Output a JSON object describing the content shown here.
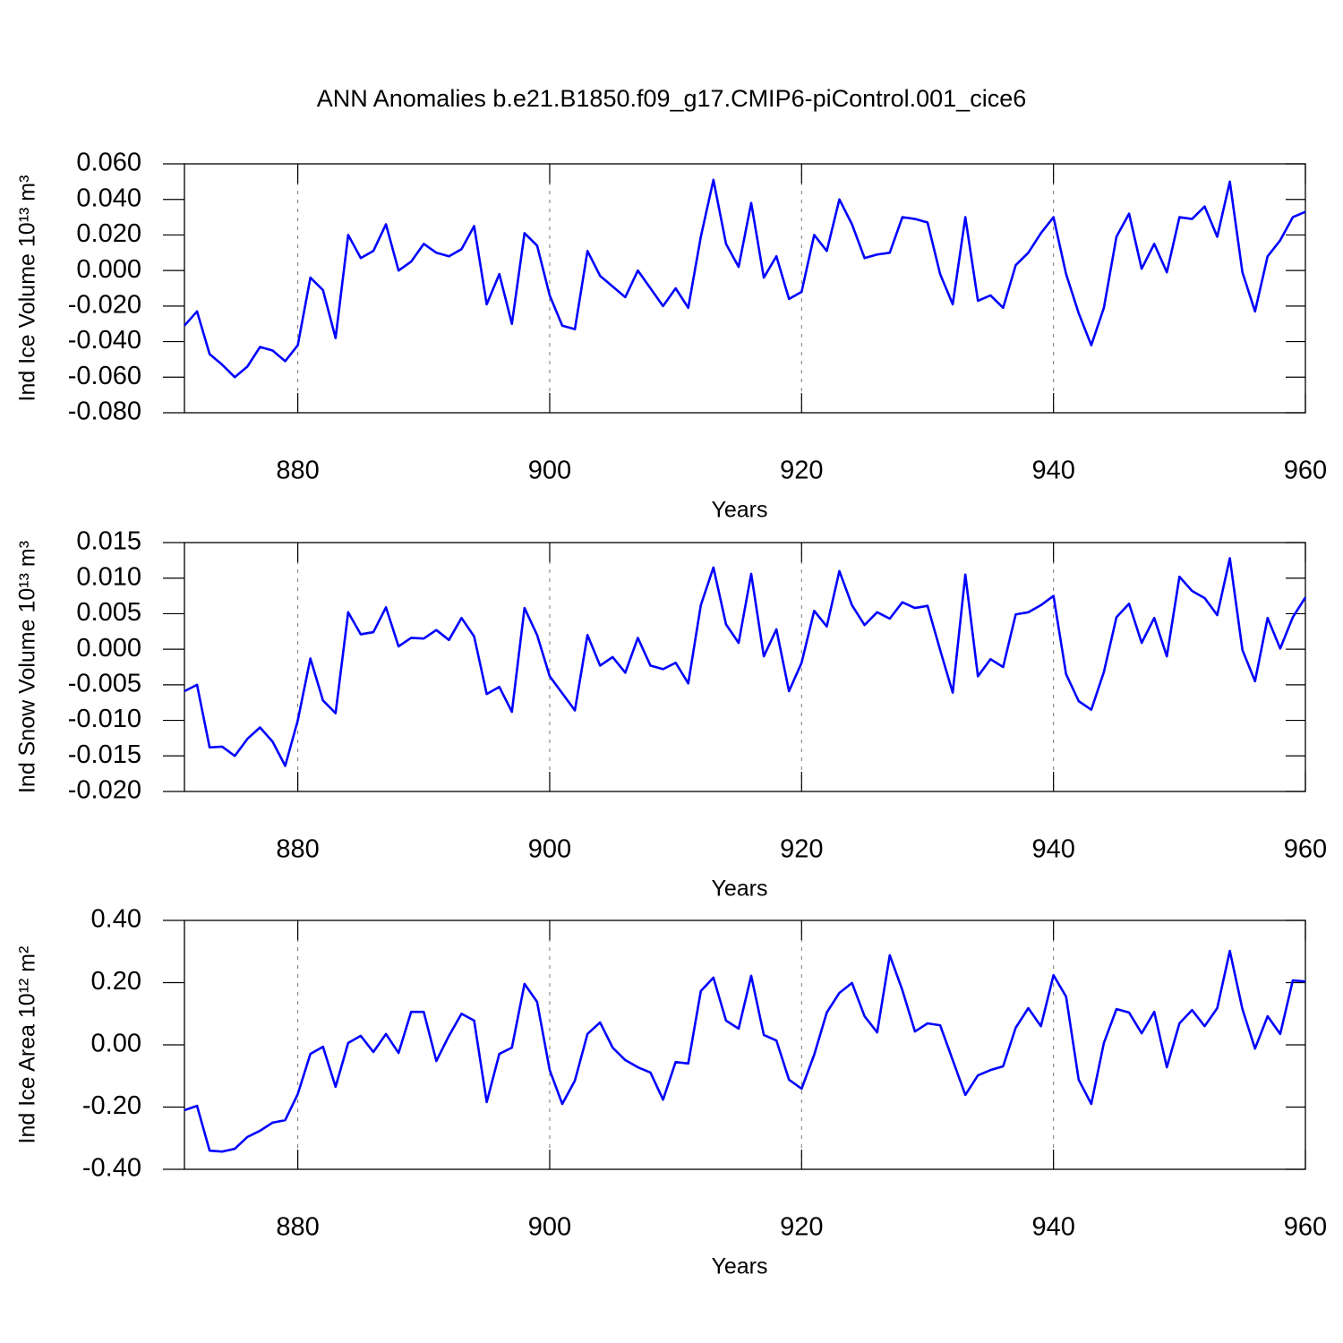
{
  "title": "ANN Anomalies b.e21.B1850.f09_g17.CMIP6-piControl.001_cice6",
  "chart_data": [
    {
      "type": "line",
      "ylabel": "Ind Ice Volume 10¹³ m³",
      "xlabel": "Years",
      "color": "#0000ff",
      "xgrid": true,
      "xlim": [
        871,
        960
      ],
      "xticks": [
        880,
        900,
        920,
        940,
        960
      ],
      "ylim": [
        -0.08,
        0.06
      ],
      "yticks": [
        {
          "value": -0.08,
          "label": "-0.080"
        },
        {
          "value": -0.06,
          "label": "-0.060"
        },
        {
          "value": -0.04,
          "label": "-0.040"
        },
        {
          "value": -0.02,
          "label": "-0.020"
        },
        {
          "value": 0,
          "label": "0.000"
        },
        {
          "value": 0.02,
          "label": "0.020"
        },
        {
          "value": 0.04,
          "label": "0.040"
        },
        {
          "value": 0.06,
          "label": "0.060"
        }
      ],
      "x": [
        871,
        872,
        873,
        874,
        875,
        876,
        877,
        878,
        879,
        880,
        881,
        882,
        883,
        884,
        885,
        886,
        887,
        888,
        889,
        890,
        891,
        892,
        893,
        894,
        895,
        896,
        897,
        898,
        899,
        900,
        901,
        902,
        903,
        904,
        905,
        906,
        907,
        908,
        909,
        910,
        911,
        912,
        913,
        914,
        915,
        916,
        917,
        918,
        919,
        920,
        921,
        922,
        923,
        924,
        925,
        926,
        927,
        928,
        929,
        930,
        931,
        932,
        933,
        934,
        935,
        936,
        937,
        938,
        939,
        940,
        941,
        942,
        943,
        944,
        945,
        946,
        947,
        948,
        949,
        950,
        951,
        952,
        953,
        954,
        955,
        956,
        957,
        958,
        959,
        960
      ],
      "values": [
        -0.031,
        -0.023,
        -0.047,
        -0.053,
        -0.06,
        -0.054,
        -0.043,
        -0.045,
        -0.051,
        -0.042,
        -0.004,
        -0.011,
        -0.038,
        0.02,
        0.007,
        0.011,
        0.026,
        0.0,
        0.005,
        0.015,
        0.01,
        0.008,
        0.012,
        0.025,
        -0.019,
        -0.002,
        -0.03,
        0.021,
        0.014,
        -0.014,
        -0.031,
        -0.033,
        0.011,
        -0.003,
        -0.009,
        -0.015,
        0.0,
        -0.01,
        -0.02,
        -0.01,
        -0.021,
        0.019,
        0.051,
        0.015,
        0.002,
        0.038,
        -0.004,
        0.008,
        -0.016,
        -0.012,
        0.02,
        0.011,
        0.04,
        0.026,
        0.007,
        0.009,
        0.01,
        0.03,
        0.029,
        0.027,
        -0.002,
        -0.019,
        0.03,
        -0.017,
        -0.014,
        -0.021,
        0.003,
        0.01,
        0.021,
        0.03,
        -0.002,
        -0.024,
        -0.042,
        -0.021,
        0.019,
        0.032,
        0.001,
        0.015,
        -0.001,
        0.03,
        0.029,
        0.036,
        0.019,
        0.05,
        -0.001,
        -0.023,
        0.008,
        0.017,
        0.03,
        0.033
      ]
    },
    {
      "type": "line",
      "ylabel": "Ind Snow Volume 10¹³ m³",
      "xlabel": "Years",
      "color": "#0000ff",
      "xgrid": true,
      "xlim": [
        871,
        960
      ],
      "xticks": [
        880,
        900,
        920,
        940,
        960
      ],
      "ylim": [
        -0.02,
        0.015
      ],
      "yticks": [
        {
          "value": -0.02,
          "label": "-0.020"
        },
        {
          "value": -0.015,
          "label": "-0.015"
        },
        {
          "value": -0.01,
          "label": "-0.010"
        },
        {
          "value": -0.005,
          "label": "-0.005"
        },
        {
          "value": 0,
          "label": "0.000"
        },
        {
          "value": 0.005,
          "label": "0.005"
        },
        {
          "value": 0.01,
          "label": "0.010"
        },
        {
          "value": 0.015,
          "label": "0.015"
        }
      ],
      "x": [
        871,
        872,
        873,
        874,
        875,
        876,
        877,
        878,
        879,
        880,
        881,
        882,
        883,
        884,
        885,
        886,
        887,
        888,
        889,
        890,
        891,
        892,
        893,
        894,
        895,
        896,
        897,
        898,
        899,
        900,
        901,
        902,
        903,
        904,
        905,
        906,
        907,
        908,
        909,
        910,
        911,
        912,
        913,
        914,
        915,
        916,
        917,
        918,
        919,
        920,
        921,
        922,
        923,
        924,
        925,
        926,
        927,
        928,
        929,
        930,
        931,
        932,
        933,
        934,
        935,
        936,
        937,
        938,
        939,
        940,
        941,
        942,
        943,
        944,
        945,
        946,
        947,
        948,
        949,
        950,
        951,
        952,
        953,
        954,
        955,
        956,
        957,
        958,
        959,
        960
      ],
      "values": [
        -0.0059,
        -0.005,
        -0.0138,
        -0.0137,
        -0.015,
        -0.0126,
        -0.011,
        -0.013,
        -0.0164,
        -0.01,
        -0.0013,
        -0.0072,
        -0.009,
        0.0052,
        0.0021,
        0.0024,
        0.0059,
        0.0004,
        0.0016,
        0.0015,
        0.0027,
        0.0013,
        0.0044,
        0.0018,
        -0.0063,
        -0.0053,
        -0.0088,
        0.0058,
        0.002,
        -0.0038,
        -0.0062,
        -0.0086,
        0.002,
        -0.0023,
        -0.0011,
        -0.0033,
        0.0016,
        -0.0023,
        -0.0028,
        -0.0019,
        -0.0048,
        0.0062,
        0.0115,
        0.0035,
        0.0009,
        0.0106,
        -0.001,
        0.0028,
        -0.0059,
        -0.0019,
        0.0054,
        0.0032,
        0.011,
        0.0062,
        0.0034,
        0.0052,
        0.0043,
        0.0066,
        0.0058,
        0.0061,
        -0.0001,
        -0.0061,
        0.0105,
        -0.0038,
        -0.0014,
        -0.0025,
        0.0049,
        0.0052,
        0.0062,
        0.0075,
        -0.0035,
        -0.0073,
        -0.0085,
        -0.0032,
        0.0045,
        0.0064,
        0.0009,
        0.0044,
        -0.001,
        0.0102,
        0.0082,
        0.0072,
        0.0048,
        0.0128,
        -0.0001,
        -0.0045,
        0.0044,
        0.0001,
        0.0045,
        0.0073
      ]
    },
    {
      "type": "line",
      "ylabel": "Ind Ice Area 10¹² m²",
      "xlabel": "Years",
      "color": "#0000ff",
      "xgrid": true,
      "xlim": [
        871,
        960
      ],
      "xticks": [
        880,
        900,
        920,
        940,
        960
      ],
      "ylim": [
        -0.4,
        0.4
      ],
      "yticks": [
        {
          "value": -0.4,
          "label": "-0.40"
        },
        {
          "value": -0.2,
          "label": "-0.20"
        },
        {
          "value": 0,
          "label": "0.00"
        },
        {
          "value": 0.2,
          "label": "0.20"
        },
        {
          "value": 0.4,
          "label": "0.40"
        }
      ],
      "x": [
        871,
        872,
        873,
        874,
        875,
        876,
        877,
        878,
        879,
        880,
        881,
        882,
        883,
        884,
        885,
        886,
        887,
        888,
        889,
        890,
        891,
        892,
        893,
        894,
        895,
        896,
        897,
        898,
        899,
        900,
        901,
        902,
        903,
        904,
        905,
        906,
        907,
        908,
        909,
        910,
        911,
        912,
        913,
        914,
        915,
        916,
        917,
        918,
        919,
        920,
        921,
        922,
        923,
        924,
        925,
        926,
        927,
        928,
        929,
        930,
        931,
        932,
        933,
        934,
        935,
        936,
        937,
        938,
        939,
        940,
        941,
        942,
        943,
        944,
        945,
        946,
        947,
        948,
        949,
        950,
        951,
        952,
        953,
        954,
        955,
        956,
        957,
        958,
        959,
        960
      ],
      "values": [
        -0.21,
        -0.196,
        -0.34,
        -0.343,
        -0.334,
        -0.296,
        -0.276,
        -0.25,
        -0.242,
        -0.158,
        -0.029,
        -0.006,
        -0.135,
        0.006,
        0.029,
        -0.023,
        0.035,
        -0.026,
        0.106,
        0.106,
        -0.052,
        0.029,
        0.1,
        0.078,
        -0.184,
        -0.029,
        -0.009,
        0.196,
        0.138,
        -0.081,
        -0.19,
        -0.115,
        0.035,
        0.072,
        -0.009,
        -0.049,
        -0.072,
        -0.089,
        -0.176,
        -0.055,
        -0.06,
        0.173,
        0.216,
        0.078,
        0.052,
        0.222,
        0.032,
        0.014,
        -0.112,
        -0.141,
        -0.032,
        0.104,
        0.167,
        0.199,
        0.092,
        0.04,
        0.288,
        0.176,
        0.043,
        0.069,
        0.063,
        -0.049,
        -0.161,
        -0.098,
        -0.081,
        -0.069,
        0.055,
        0.118,
        0.06,
        0.224,
        0.155,
        -0.112,
        -0.19,
        0.006,
        0.115,
        0.104,
        0.037,
        0.106,
        -0.072,
        0.069,
        0.112,
        0.06,
        0.118,
        0.302,
        0.115,
        -0.012,
        0.092,
        0.035,
        0.207,
        0.204
      ]
    }
  ]
}
